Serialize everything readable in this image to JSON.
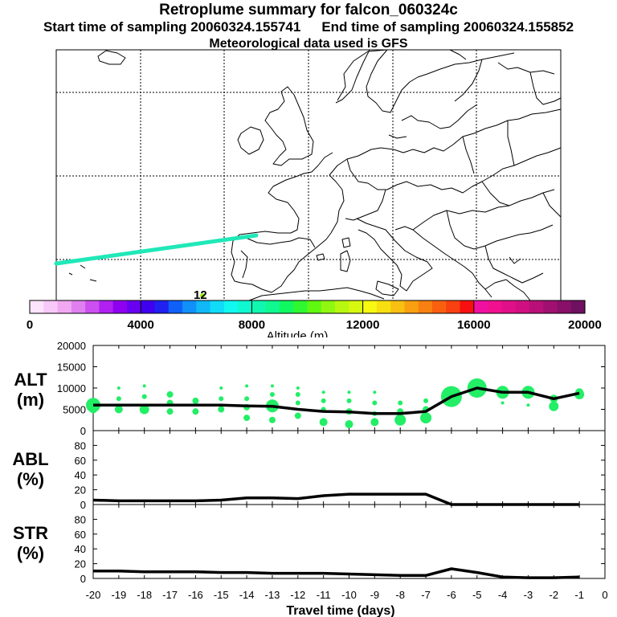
{
  "header": {
    "title": "Retroplume summary for falcon_060324c",
    "start_label": "Start time of sampling 20060324.155741",
    "end_label": "End time of sampling 20060324.155852",
    "met_label": "Meteorological data used is GFS"
  },
  "map": {
    "marker_label": "12",
    "colors": {
      "trajectory": "#20e8b8",
      "marker": "#a0f000"
    }
  },
  "colorbar": {
    "title": "Altitude (m)",
    "ticks": [
      "0",
      "4000",
      "8000",
      "12000",
      "16000",
      "20000"
    ],
    "colors": [
      "#fce4fc",
      "#f8c8f8",
      "#f0a8f0",
      "#e080f0",
      "#cc50f0",
      "#b020f0",
      "#9000f0",
      "#6a00f0",
      "#4000f0",
      "#2020f0",
      "#1060f8",
      "#1090f8",
      "#10b8f8",
      "#10dcf8",
      "#10f8f0",
      "#10f8d0",
      "#10f8b0",
      "#10f890",
      "#10f860",
      "#30f830",
      "#60f810",
      "#90f810",
      "#b8f810",
      "#d8f810",
      "#f8f810",
      "#f8e010",
      "#f8c010",
      "#f8a010",
      "#f88010",
      "#f86010",
      "#f84010",
      "#f81010",
      "#f010a0",
      "#f01090",
      "#e01088",
      "#d01080",
      "#b81078",
      "#a01070",
      "#881068",
      "#701060"
    ]
  },
  "chart_data": [
    {
      "type": "line",
      "name": "ALT",
      "ylabel_lines": [
        "ALT",
        "(m)"
      ],
      "ylim": [
        0,
        20000
      ],
      "yticks": [
        "0",
        "5000",
        "10000",
        "15000",
        "20000"
      ],
      "x": [
        -20,
        -19,
        -18,
        -17,
        -16,
        -15,
        -14,
        -13,
        -12,
        -11,
        -10,
        -9,
        -8,
        -7,
        -6,
        -5,
        -4,
        -3,
        -2,
        -1
      ],
      "values": [
        6000,
        6000,
        6000,
        6000,
        6000,
        6000,
        5800,
        5700,
        5000,
        4500,
        4400,
        4000,
        4000,
        4500,
        8000,
        10000,
        9000,
        9000,
        7500,
        8800
      ],
      "scatter": {
        "points": [
          {
            "x": -20,
            "y": 6000,
            "s": 9
          },
          {
            "x": -20,
            "y": 5000,
            "s": 5
          },
          {
            "x": -19,
            "y": 10000,
            "s": 2
          },
          {
            "x": -19,
            "y": 7500,
            "s": 3
          },
          {
            "x": -19,
            "y": 5000,
            "s": 5
          },
          {
            "x": -18,
            "y": 10500,
            "s": 2
          },
          {
            "x": -18,
            "y": 8000,
            "s": 3
          },
          {
            "x": -18,
            "y": 5000,
            "s": 6
          },
          {
            "x": -17,
            "y": 8500,
            "s": 4
          },
          {
            "x": -17,
            "y": 6500,
            "s": 4
          },
          {
            "x": -17,
            "y": 4500,
            "s": 4
          },
          {
            "x": -16,
            "y": 7000,
            "s": 4
          },
          {
            "x": -16,
            "y": 4500,
            "s": 4
          },
          {
            "x": -15,
            "y": 10000,
            "s": 2
          },
          {
            "x": -15,
            "y": 7500,
            "s": 3
          },
          {
            "x": -15,
            "y": 5000,
            "s": 4
          },
          {
            "x": -14,
            "y": 10500,
            "s": 2
          },
          {
            "x": -14,
            "y": 7500,
            "s": 3
          },
          {
            "x": -14,
            "y": 5500,
            "s": 4
          },
          {
            "x": -14,
            "y": 3000,
            "s": 4
          },
          {
            "x": -13,
            "y": 10500,
            "s": 2
          },
          {
            "x": -13,
            "y": 8500,
            "s": 3
          },
          {
            "x": -13,
            "y": 5800,
            "s": 8
          },
          {
            "x": -13,
            "y": 2500,
            "s": 4
          },
          {
            "x": -12,
            "y": 10000,
            "s": 2
          },
          {
            "x": -12,
            "y": 8500,
            "s": 3
          },
          {
            "x": -12,
            "y": 6500,
            "s": 3
          },
          {
            "x": -12,
            "y": 3500,
            "s": 4
          },
          {
            "x": -11,
            "y": 9000,
            "s": 2
          },
          {
            "x": -11,
            "y": 7000,
            "s": 3
          },
          {
            "x": -11,
            "y": 5000,
            "s": 3
          },
          {
            "x": -11,
            "y": 2000,
            "s": 5
          },
          {
            "x": -10,
            "y": 9000,
            "s": 2
          },
          {
            "x": -10,
            "y": 7000,
            "s": 3
          },
          {
            "x": -10,
            "y": 4500,
            "s": 4
          },
          {
            "x": -10,
            "y": 1500,
            "s": 5
          },
          {
            "x": -9,
            "y": 9000,
            "s": 2
          },
          {
            "x": -9,
            "y": 6500,
            "s": 3
          },
          {
            "x": -9,
            "y": 4000,
            "s": 3
          },
          {
            "x": -9,
            "y": 2000,
            "s": 5
          },
          {
            "x": -8,
            "y": 6500,
            "s": 3
          },
          {
            "x": -8,
            "y": 4500,
            "s": 4
          },
          {
            "x": -8,
            "y": 2500,
            "s": 7
          },
          {
            "x": -7,
            "y": 7000,
            "s": 3
          },
          {
            "x": -7,
            "y": 5000,
            "s": 4
          },
          {
            "x": -7,
            "y": 3000,
            "s": 7
          },
          {
            "x": -6,
            "y": 8000,
            "s": 13
          },
          {
            "x": -5,
            "y": 10000,
            "s": 12
          },
          {
            "x": -4,
            "y": 9000,
            "s": 8
          },
          {
            "x": -4,
            "y": 6500,
            "s": 2
          },
          {
            "x": -3,
            "y": 9000,
            "s": 8
          },
          {
            "x": -3,
            "y": 6000,
            "s": 2
          },
          {
            "x": -2,
            "y": 7500,
            "s": 5
          },
          {
            "x": -2,
            "y": 5700,
            "s": 6
          },
          {
            "x": -1,
            "y": 9000,
            "s": 5
          },
          {
            "x": -1,
            "y": 8500,
            "s": 6
          }
        ]
      }
    },
    {
      "type": "line",
      "name": "ABL",
      "ylabel_lines": [
        "ABL",
        "(%)"
      ],
      "ylim": [
        0,
        100
      ],
      "yticks": [
        "0",
        "20",
        "40",
        "60",
        "80"
      ],
      "x": [
        -20,
        -19,
        -18,
        -17,
        -16,
        -15,
        -14,
        -13,
        -12,
        -11,
        -10,
        -9,
        -8,
        -7,
        -6,
        -5,
        -4,
        -3,
        -2,
        -1
      ],
      "values": [
        6,
        5,
        5,
        5,
        5,
        6,
        9,
        9,
        8,
        12,
        14,
        14,
        14,
        14,
        0,
        0,
        0,
        0,
        0,
        0
      ]
    },
    {
      "type": "line",
      "name": "STR",
      "ylabel_lines": [
        "STR",
        "(%)"
      ],
      "ylim": [
        0,
        100
      ],
      "yticks": [
        "0",
        "20",
        "40",
        "60",
        "80"
      ],
      "x": [
        -20,
        -19,
        -18,
        -17,
        -16,
        -15,
        -14,
        -13,
        -12,
        -11,
        -10,
        -9,
        -8,
        -7,
        -6,
        -5,
        -4,
        -3,
        -2,
        -1
      ],
      "values": [
        10,
        10,
        9,
        9,
        9,
        8,
        8,
        7,
        7,
        7,
        6,
        5,
        4,
        4,
        13,
        8,
        2,
        1,
        1,
        2
      ],
      "xlabel": "Travel time (days)",
      "xticks": [
        "-20",
        "-19",
        "-18",
        "-17",
        "-16",
        "-15",
        "-14",
        "-13",
        "-12",
        "-11",
        "-10",
        "-9",
        "-8",
        "-7",
        "-6",
        "-5",
        "-4",
        "-3",
        "-2",
        "-1",
        "0"
      ]
    }
  ]
}
